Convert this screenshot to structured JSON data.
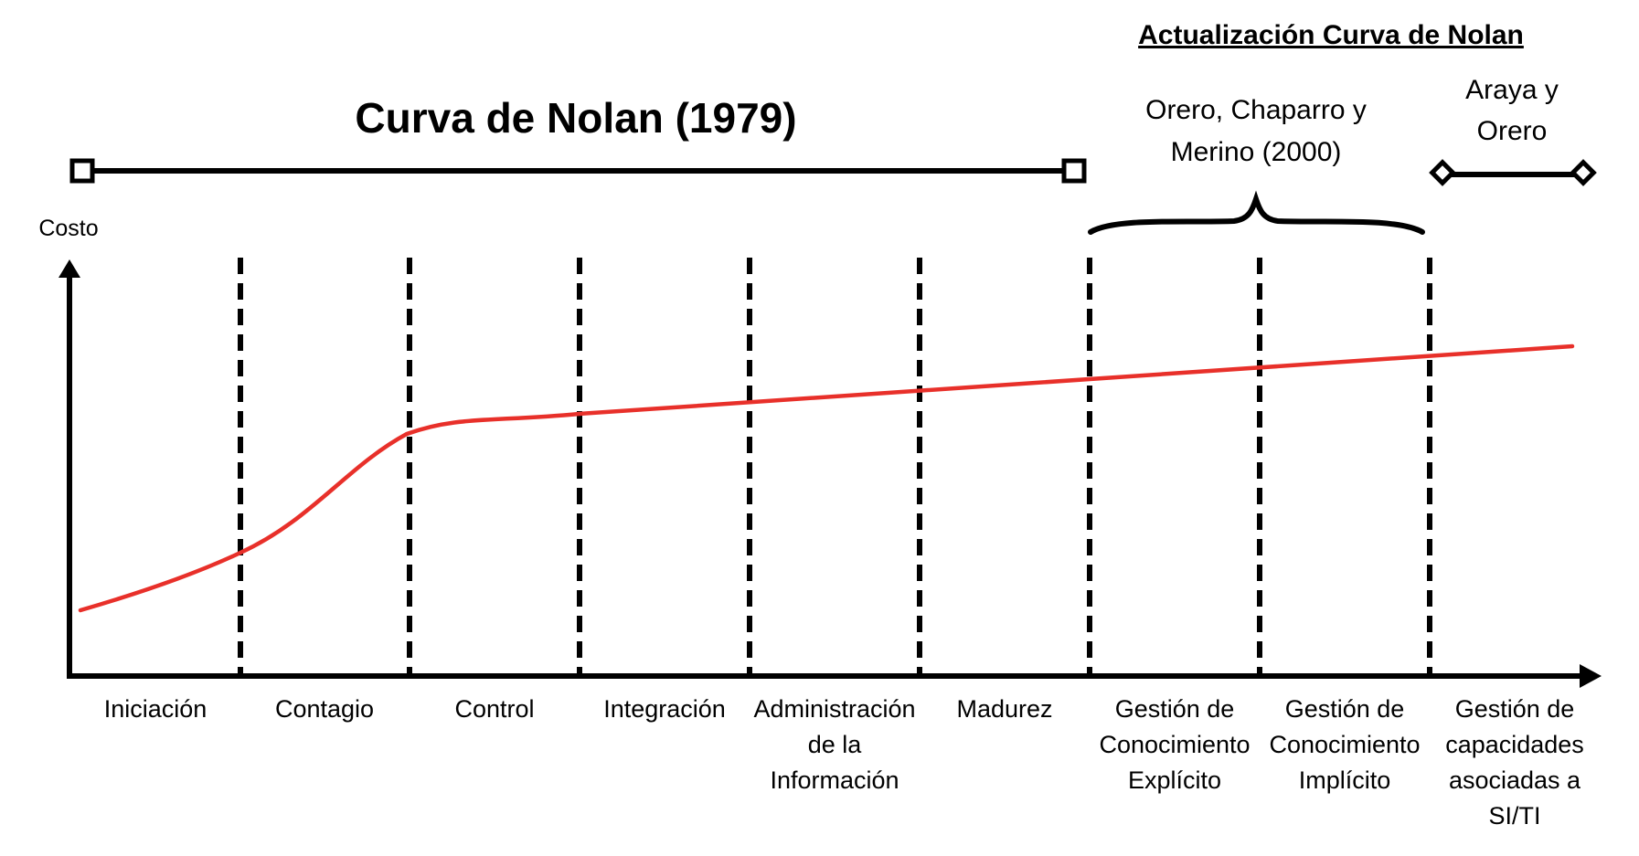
{
  "title": "Curva de Nolan (1979)",
  "update_title": "Actualización Curva de Nolan",
  "update_authors": {
    "orero_chaparro_merino": [
      "Orero, Chaparro y",
      "Merino (2000)"
    ],
    "araya_orero": [
      "Araya y",
      "Orero"
    ]
  },
  "y_axis_label": "Costo",
  "stages": [
    [
      "Iniciación"
    ],
    [
      "Contagio"
    ],
    [
      "Control"
    ],
    [
      "Integración"
    ],
    [
      "Administración",
      "de la",
      "Información"
    ],
    [
      "Madurez"
    ],
    [
      "Gestión de",
      "Conocimiento",
      "Explícito"
    ],
    [
      "Gestión de",
      "Conocimiento",
      "Implícito"
    ],
    [
      "Gestión de",
      "capacidades",
      "asociadas a",
      "SI/TI"
    ]
  ],
  "colors": {
    "curve": "#e8302a",
    "lines": "#000000",
    "background": "#ffffff"
  }
}
